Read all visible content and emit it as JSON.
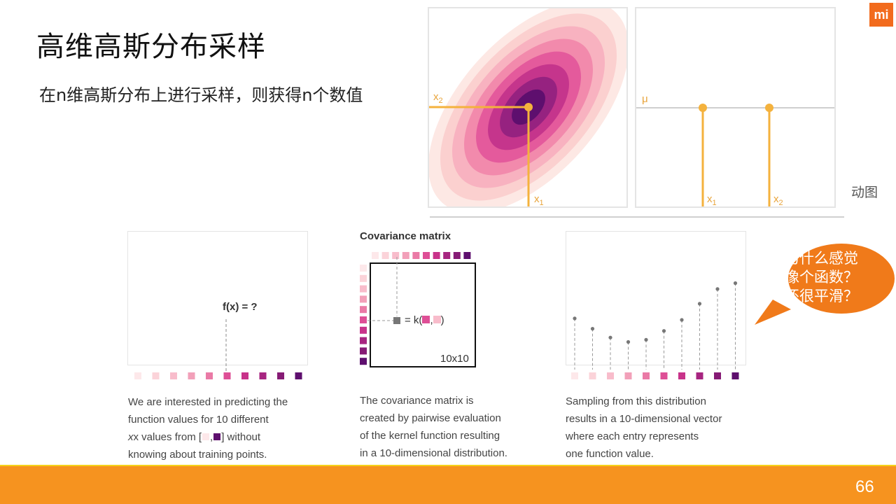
{
  "slide": {
    "title": "高维高斯分布采样",
    "subtitle": "在n维高斯分布上进行采样，则获得n个数值",
    "page_number": "66",
    "animated_label": "动图",
    "logo_text": "mi"
  },
  "gaussian_panel": {
    "x1_label": "x",
    "x1_sub": "1",
    "x2_label": "x",
    "x2_sub": "2",
    "contour_colors": [
      "#fde8e4",
      "#fbd0cf",
      "#f8b2c0",
      "#f28aac",
      "#e45a9c",
      "#c5358c",
      "#962280",
      "#5e0f6e"
    ]
  },
  "sample_panel": {
    "mu_label": "μ",
    "x1_label": "x",
    "x1_sub": "1",
    "x2_label": "x",
    "x2_sub": "2"
  },
  "card1": {
    "fx_label": "f(x) = ?",
    "caption": [
      "We are interested in predicting the",
      "function values for 10 different",
      "x values from [",
      ",",
      "] without",
      "knowing about training points."
    ]
  },
  "card2": {
    "title": "Covariance matrix",
    "matrix_size_label": "10x10",
    "kernel_label_prefix": "= k(",
    "kernel_label_comma": ",",
    "kernel_label_suffix": ")",
    "caption": [
      "The covariance matrix is",
      "created by pairwise evaluation",
      "of the kernel function resulting",
      "in a 10-dimensional distribution."
    ]
  },
  "card3": {
    "caption": [
      "Sampling from this distribution",
      "results in a 10-dimensional vector",
      "where each entry represents",
      "one function value."
    ],
    "sample_values": [
      0.62,
      0.48,
      0.36,
      0.3,
      0.33,
      0.45,
      0.6,
      0.82,
      1.02,
      1.1
    ]
  },
  "bubble": {
    "lines": [
      "为什么感觉",
      "像个函数？",
      "还很平滑？"
    ],
    "color": "#f07a1a"
  },
  "palette": {
    "squares": [
      "#fde8ea",
      "#fbd3d9",
      "#f8bccb",
      "#f2a0b9",
      "#ea7aa6",
      "#de4f96",
      "#c8338a",
      "#a72580",
      "#861b75",
      "#5e0f6e"
    ],
    "accent": "#f4b23d"
  }
}
